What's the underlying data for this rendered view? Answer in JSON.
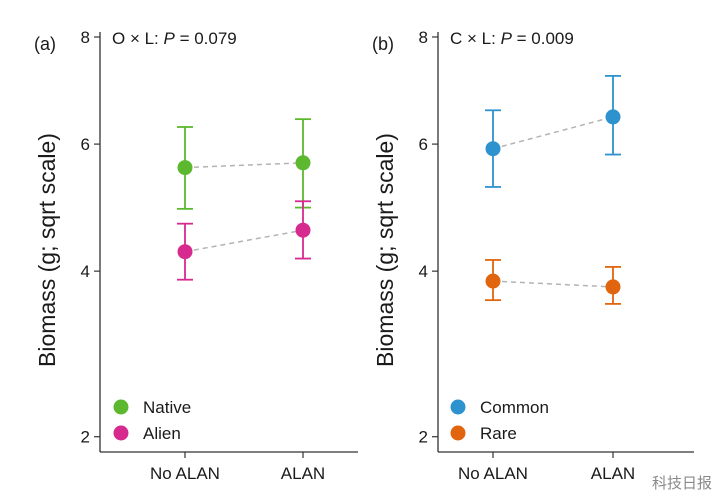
{
  "chart_data": [
    {
      "type": "scatter",
      "panel_label": "(a)",
      "annotation_prefix": "O × L: ",
      "annotation_p": "P",
      "annotation_value": " = 0.079",
      "ylabel": "Biomass (g; sqrt scale)",
      "xlabel": "",
      "y_scale": "sqrt",
      "ylim": [
        1.85,
        8.1
      ],
      "yticks": [
        2,
        4,
        6,
        8
      ],
      "categories": [
        "No ALAN",
        "ALAN"
      ],
      "legend_position": "bottom-left",
      "grid": false,
      "series": [
        {
          "name": "Native",
          "color": "#5cb82e",
          "values": [
            5.6,
            5.68
          ],
          "lower": [
            4.93,
            4.95
          ],
          "upper": [
            6.3,
            6.44
          ]
        },
        {
          "name": "Alien",
          "color": "#d62a8e",
          "values": [
            4.28,
            4.6
          ],
          "lower": [
            3.88,
            4.18
          ],
          "upper": [
            4.7,
            5.05
          ]
        }
      ]
    },
    {
      "type": "scatter",
      "panel_label": "(b)",
      "annotation_prefix": "C × L: ",
      "annotation_p": "P",
      "annotation_value": " = 0.009",
      "ylabel": "Biomass (g; sqrt scale)",
      "xlabel": "",
      "y_scale": "sqrt",
      "ylim": [
        1.85,
        8.1
      ],
      "yticks": [
        2,
        4,
        6,
        8
      ],
      "categories": [
        "No ALAN",
        "ALAN"
      ],
      "legend_position": "bottom-left",
      "grid": false,
      "series": [
        {
          "name": "Common",
          "color": "#2e92cf",
          "values": [
            5.92,
            6.48
          ],
          "lower": [
            5.28,
            5.82
          ],
          "upper": [
            6.6,
            7.24
          ]
        },
        {
          "name": "Rare",
          "color": "#e0650e",
          "values": [
            3.86,
            3.78
          ],
          "lower": [
            3.6,
            3.55
          ],
          "upper": [
            4.16,
            4.06
          ]
        }
      ]
    }
  ],
  "watermark": "科技日报"
}
